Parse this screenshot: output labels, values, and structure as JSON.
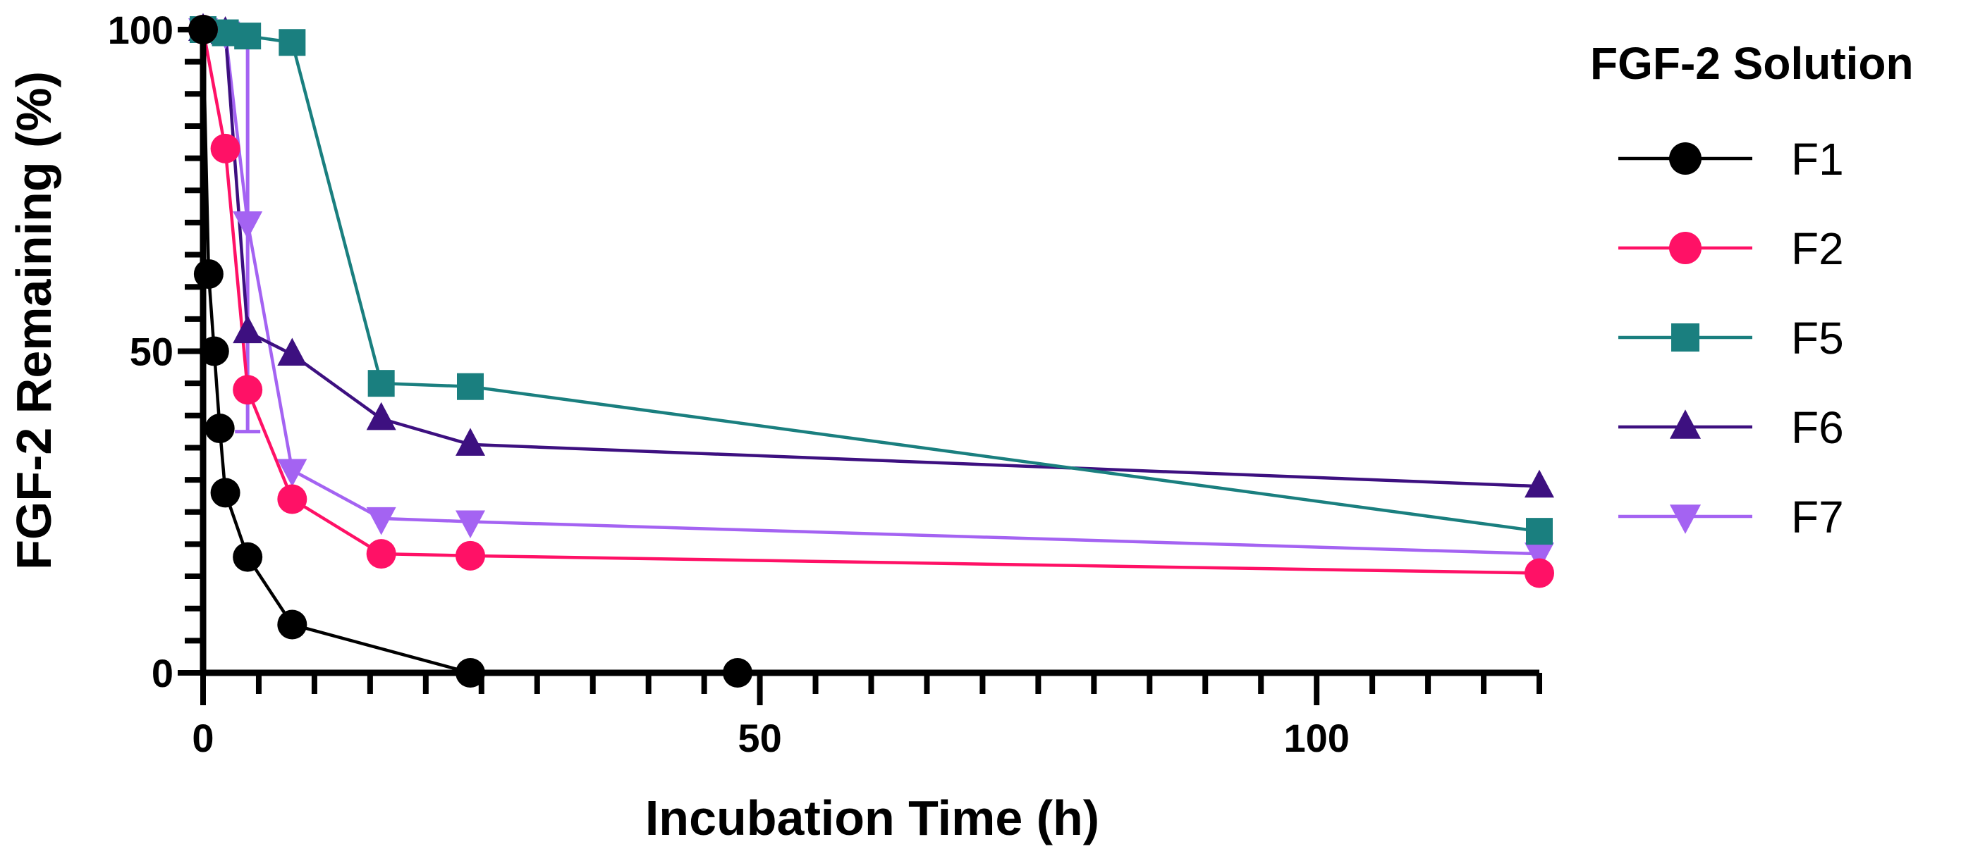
{
  "chart_data": {
    "type": "line",
    "xlabel": "Incubation Time (h)",
    "ylabel": "FGF-2 Remaining (%)",
    "xlim": [
      0,
      120
    ],
    "ylim": [
      0,
      100
    ],
    "x_ticks": [
      0,
      50,
      100
    ],
    "y_ticks": [
      0,
      50,
      100
    ],
    "x_minor_step": 5,
    "y_minor_step": 5,
    "grid": false,
    "legend": {
      "title": "FGF-2 Solution",
      "placement": "right"
    },
    "series": [
      {
        "name": "F1",
        "color": "#000000",
        "marker": "circle",
        "x": [
          0,
          0.5,
          1,
          1.5,
          2,
          4,
          8,
          24,
          48
        ],
        "y": [
          100,
          62,
          50,
          38,
          28,
          18,
          7.5,
          0,
          0
        ]
      },
      {
        "name": "F2",
        "color": "#ff1166",
        "marker": "circle",
        "x": [
          0,
          2,
          4,
          8,
          16,
          24,
          120
        ],
        "y": [
          100,
          81.5,
          44,
          27,
          18.5,
          18.2,
          15.5
        ]
      },
      {
        "name": "F5",
        "color": "#1a7f7f",
        "marker": "square",
        "x": [
          0,
          2,
          4,
          8,
          16,
          24,
          120
        ],
        "y": [
          100,
          99.5,
          99,
          98,
          45,
          44.5,
          22
        ]
      },
      {
        "name": "F6",
        "color": "#3d1080",
        "marker": "triangle-up",
        "x": [
          0,
          2,
          4,
          8,
          16,
          24,
          120
        ],
        "y": [
          100,
          99.5,
          53,
          49.5,
          39.5,
          35.5,
          29
        ]
      },
      {
        "name": "F7",
        "color": "#a463f2",
        "marker": "triangle-down",
        "x": [
          0,
          2,
          4,
          8,
          16,
          24,
          120
        ],
        "y": [
          100,
          99.5,
          70,
          31.5,
          24,
          23.5,
          18.5
        ]
      }
    ]
  }
}
